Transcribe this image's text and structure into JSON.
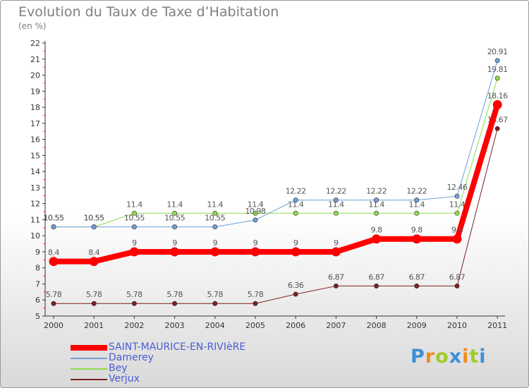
{
  "title": "Evolution du Taux de Taxe d’Habitation",
  "subtitle": "(en %)",
  "brand": {
    "text": "Proxiti",
    "colors": [
      "#3c8fd6",
      "#f08c1e",
      "#9fcc2a",
      "#3c8fd6",
      "#f08c1e",
      "#9fcc2a",
      "#3c8fd6"
    ]
  },
  "chart_data": {
    "type": "line",
    "x": [
      "2000",
      "2001",
      "2002",
      "2003",
      "2004",
      "2005",
      "2006",
      "2007",
      "2008",
      "2009",
      "2010",
      "2011"
    ],
    "ylim": [
      5,
      22
    ],
    "yticks": [
      5,
      6,
      7,
      8,
      9,
      10,
      11,
      12,
      13,
      14,
      15,
      16,
      17,
      18,
      19,
      20,
      21,
      22
    ],
    "grid": false,
    "legend_position": "bottom-left",
    "series": [
      {
        "name": "Verjux",
        "color": "#7a2020",
        "width": 1,
        "values": [
          5.78,
          5.78,
          5.78,
          5.78,
          5.78,
          5.78,
          6.36,
          6.87,
          6.87,
          6.87,
          6.87,
          16.67
        ],
        "labels": [
          "5.78",
          "5.78",
          "5.78",
          "5.78",
          "5.78",
          "5.78",
          "6.36",
          "6.87",
          "6.87",
          "6.87",
          "6.87",
          "16.67"
        ]
      },
      {
        "name": "Bey",
        "color": "#8fd94a",
        "width": 1,
        "values": [
          10.55,
          10.55,
          11.4,
          11.4,
          11.4,
          11.4,
          11.4,
          11.4,
          11.4,
          11.4,
          11.4,
          19.81
        ],
        "labels": [
          "10.55",
          "10.55",
          "11.4",
          "11.4",
          "11.4",
          "11.4",
          "11.4",
          "11.4",
          "11.4",
          "11.4",
          "11.4",
          "19.81"
        ]
      },
      {
        "name": "Damerey",
        "color": "#6f9fd8",
        "width": 1,
        "values": [
          10.55,
          10.55,
          10.55,
          10.55,
          10.55,
          10.98,
          12.22,
          12.22,
          12.22,
          12.22,
          12.46,
          20.91
        ],
        "labels": [
          "10.55",
          "10.55",
          "10.55",
          "10.55",
          "10.55",
          "10.98",
          "12.22",
          "12.22",
          "12.22",
          "12.22",
          "12.46",
          "20.91"
        ]
      },
      {
        "name": "SAINT-MAURICE-EN-RIVIèRE",
        "color": "#ff0000",
        "width": 8,
        "values": [
          8.4,
          8.4,
          9,
          9,
          9,
          9,
          9,
          9,
          9.8,
          9.8,
          9.8,
          18.16
        ],
        "labels": [
          "8.4",
          "8.4",
          "9",
          "9",
          "9",
          "9",
          "9",
          "9",
          "9.8",
          "9.8",
          "9.8",
          "18.16"
        ]
      }
    ],
    "legend_order": [
      "SAINT-MAURICE-EN-RIVIèRE",
      "Damerey",
      "Bey",
      "Verjux"
    ]
  }
}
